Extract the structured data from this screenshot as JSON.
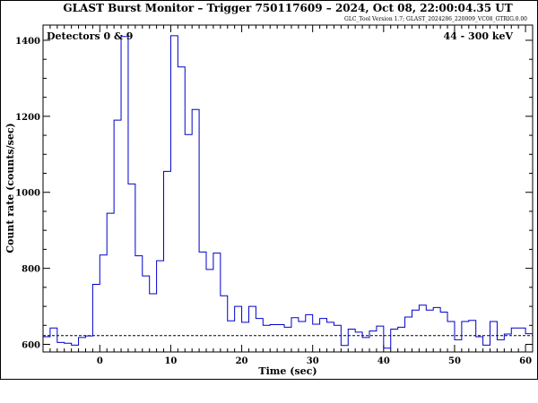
{
  "chart_data": {
    "type": "line",
    "title": "GLAST Burst Monitor  –  Trigger 750117609  –  2024, Oct 08, 22:00:04.35 UT",
    "subtitle": "GLC_Tool Version 1.7; GLAST_2024286_220009_VC08_GTRIG.0.00",
    "xlabel": "Time (sec)",
    "ylabel": "Count rate (counts/sec)",
    "annotation_left": "Detectors 0 & 9",
    "annotation_right": "44 - 300 keV",
    "xlim": [
      -8,
      61
    ],
    "ylim": [
      580,
      1440
    ],
    "xticks": [
      0,
      10,
      20,
      30,
      40,
      50,
      60
    ],
    "yticks": [
      600,
      800,
      1000,
      1200,
      1400
    ],
    "background_level": 623,
    "step": true,
    "series": [
      {
        "color": "#0000cc",
        "x": [
          -8,
          -7,
          -6,
          -5,
          -4,
          -3,
          -2,
          -1,
          0,
          1,
          2,
          3,
          4,
          5,
          6,
          7,
          8,
          9,
          10,
          11,
          12,
          13,
          14,
          15,
          16,
          17,
          18,
          19,
          20,
          21,
          22,
          23,
          24,
          25,
          26,
          27,
          28,
          29,
          30,
          31,
          32,
          33,
          34,
          35,
          36,
          37,
          38,
          39,
          40,
          41,
          42,
          43,
          44,
          45,
          46,
          47,
          48,
          49,
          50,
          51,
          52,
          53,
          54,
          55,
          56,
          57,
          58,
          59,
          60,
          61
        ],
        "y": [
          620,
          643,
          605,
          603,
          598,
          618,
          622,
          758,
          835,
          945,
          1190,
          1410,
          1022,
          833,
          780,
          733,
          820,
          1055,
          1412,
          1330,
          1152,
          1218,
          843,
          797,
          840,
          728,
          662,
          700,
          658,
          700,
          668,
          650,
          652,
          652,
          645,
          670,
          660,
          678,
          653,
          668,
          658,
          650,
          597,
          640,
          632,
          618,
          635,
          648,
          590,
          640,
          645,
          672,
          690,
          703,
          690,
          697,
          685,
          660,
          612,
          660,
          663,
          620,
          598,
          660,
          612,
          627,
          643,
          643,
          628,
          628
        ]
      }
    ]
  }
}
